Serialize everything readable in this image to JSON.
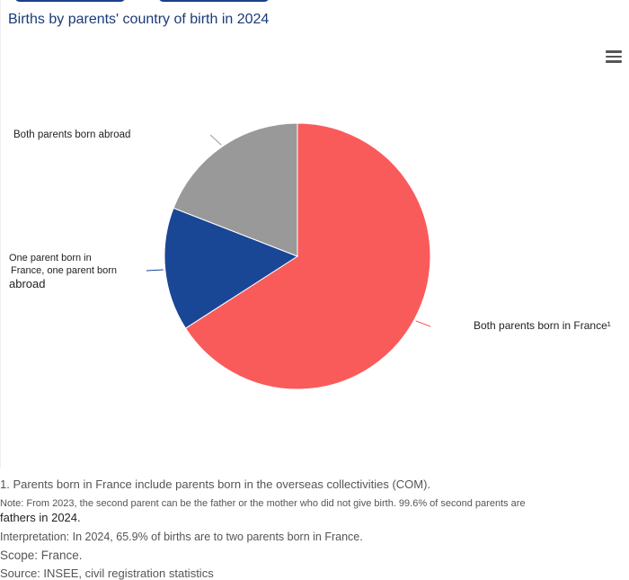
{
  "title": "Births by parents' country of birth in 2024",
  "chart_data": {
    "type": "pie",
    "slices": [
      {
        "label": "Both parents born in France¹",
        "value": 65.9,
        "color": "#f95b5b"
      },
      {
        "label": "One parent born in France, one parent born abroad",
        "value": 15.0,
        "color": "#1a4696"
      },
      {
        "label": "Both parents born abroad",
        "value": 19.1,
        "color": "#999999"
      }
    ],
    "labels": {
      "france": "Both parents born in France¹",
      "mixed": [
        "One parent born in",
        "France, one parent born",
        "abroad"
      ],
      "abroad": "Both parents born abroad"
    }
  },
  "footnotes": {
    "n1": "1. Parents born in France include parents born in the overseas collectivities (COM).",
    "note_a": "Note: From 2023, the second parent can be the father or the mother who did not give birth. 99.6% of second parents are",
    "note_b": "fathers in 2024.",
    "interp": "Interpretation: In 2024, 65.9% of births are to two parents born in France.",
    "scope": "Scope: France.",
    "source": "Source: INSEE, civil registration statistics"
  }
}
